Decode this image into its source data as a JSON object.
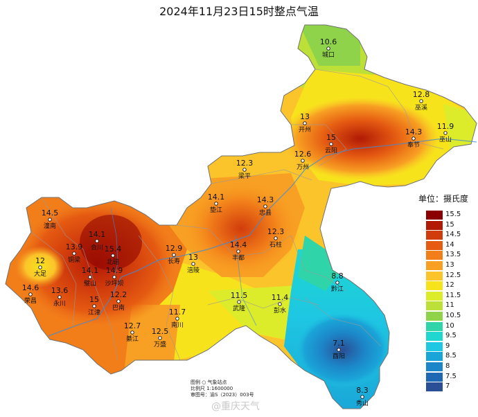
{
  "title": "2024年11月23日15时整点气温",
  "legend": {
    "title": "单位：摄氏度",
    "levels": [
      {
        "label": "15.5",
        "color": "#8a0000"
      },
      {
        "label": "15",
        "color": "#b11a05"
      },
      {
        "label": "14.5",
        "color": "#d13c0c"
      },
      {
        "label": "14",
        "color": "#e55b12"
      },
      {
        "label": "13.5",
        "color": "#f27e1a"
      },
      {
        "label": "13",
        "color": "#f8a023"
      },
      {
        "label": "12.5",
        "color": "#fbc42a"
      },
      {
        "label": "12",
        "color": "#f7e31c"
      },
      {
        "label": "11.5",
        "color": "#dcec2a"
      },
      {
        "label": "11",
        "color": "#bde038"
      },
      {
        "label": "10.5",
        "color": "#8fd34a"
      },
      {
        "label": "10",
        "color": "#2fd5a8"
      },
      {
        "label": "9.5",
        "color": "#1fd7cf"
      },
      {
        "label": "9",
        "color": "#1ec7e2"
      },
      {
        "label": "8.5",
        "color": "#1aa5d8"
      },
      {
        "label": "8",
        "color": "#1c86c8"
      },
      {
        "label": "7.5",
        "color": "#1f68b3"
      },
      {
        "label": "7",
        "color": "#2a4f96"
      }
    ]
  },
  "stations": [
    {
      "name": "城口",
      "temp": "10.6"
    },
    {
      "name": "巫溪",
      "temp": "12.8"
    },
    {
      "name": "开州",
      "temp": "13"
    },
    {
      "name": "云阳",
      "temp": "15"
    },
    {
      "name": "奉节",
      "temp": "14.3"
    },
    {
      "name": "巫山",
      "temp": "11.9"
    },
    {
      "name": "万州",
      "temp": "12.6"
    },
    {
      "name": "梁平",
      "temp": "12.3"
    },
    {
      "name": "垫江",
      "temp": "14.1"
    },
    {
      "name": "忠县",
      "temp": "14.3"
    },
    {
      "name": "石柱",
      "temp": "12.3"
    },
    {
      "name": "丰都",
      "temp": "14.4"
    },
    {
      "name": "潼南",
      "temp": "14.5"
    },
    {
      "name": "合川",
      "temp": "14.1"
    },
    {
      "name": "北碚",
      "temp": "15.4"
    },
    {
      "name": "铜梁",
      "temp": "13.9"
    },
    {
      "name": "大足",
      "temp": "12"
    },
    {
      "name": "长寿",
      "temp": "12.9"
    },
    {
      "name": "涪陵",
      "temp": "13"
    },
    {
      "name": "璧山",
      "temp": "14.1"
    },
    {
      "name": "沙坪坝",
      "temp": "14.9"
    },
    {
      "name": "荣昌",
      "temp": "14.6"
    },
    {
      "name": "永川",
      "temp": "13.6"
    },
    {
      "name": "江津",
      "temp": "15"
    },
    {
      "name": "巴南",
      "temp": "12.2"
    },
    {
      "name": "南川",
      "temp": "11.7"
    },
    {
      "name": "武隆",
      "temp": "11.5"
    },
    {
      "name": "彭水",
      "temp": "11.4"
    },
    {
      "name": "黔江",
      "temp": "8.8"
    },
    {
      "name": "綦江",
      "temp": "12.7"
    },
    {
      "name": "万盛",
      "temp": "12.5"
    },
    {
      "name": "酉阳",
      "temp": "7.1"
    },
    {
      "name": "秀山",
      "temp": "8.3"
    }
  ],
  "footer": {
    "line1": "图例    ○  气象站点",
    "line2": "比例尺   1:1600000",
    "line3": "审图号：渝S（2023）003号"
  },
  "watermark": "@重庆天气"
}
